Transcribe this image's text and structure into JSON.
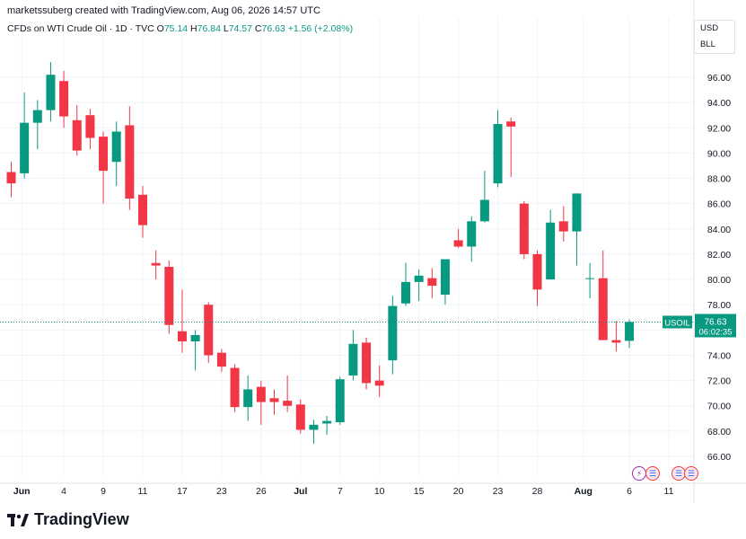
{
  "header": {
    "author_line": "marketssuberg created with TradingView.com, Aug 06, 2026 14:57 UTC"
  },
  "symbol": {
    "name": "CFDs on WTI Crude Oil · 1D · TVC",
    "o_label": "O",
    "o_value": "75.14",
    "h_label": "H",
    "h_value": "76.84",
    "l_label": "L",
    "l_value": "74.57",
    "c_label": "C",
    "c_value": "76.63",
    "change": "+1.56 (+2.08%)"
  },
  "currency": {
    "line1": "USD",
    "line2": "BLL"
  },
  "price_tag": {
    "symbol": "USOIL",
    "price": "76.63",
    "countdown": "06:02:35"
  },
  "brand": {
    "name": "TradingView"
  },
  "colors": {
    "up": "#089981",
    "down": "#f23645",
    "grid": "#f0f3fa",
    "text": "#131722",
    "last_line": "#089981"
  },
  "chart_data": {
    "type": "candlestick",
    "ylim": [
      65,
      98
    ],
    "yticks": [
      "66.00",
      "68.00",
      "70.00",
      "72.00",
      "74.00",
      "76.00",
      "78.00",
      "80.00",
      "82.00",
      "84.00",
      "86.00",
      "88.00",
      "90.00",
      "92.00",
      "94.00",
      "96.00"
    ],
    "xticks": [
      {
        "label": "Jun",
        "i": 0.8
      },
      {
        "label": "4",
        "i": 4
      },
      {
        "label": "9",
        "i": 7
      },
      {
        "label": "11",
        "i": 10
      },
      {
        "label": "17",
        "i": 13
      },
      {
        "label": "23",
        "i": 16
      },
      {
        "label": "26",
        "i": 19
      },
      {
        "label": "Jul",
        "i": 22
      },
      {
        "label": "7",
        "i": 25
      },
      {
        "label": "10",
        "i": 28
      },
      {
        "label": "15",
        "i": 31
      },
      {
        "label": "20",
        "i": 34
      },
      {
        "label": "23",
        "i": 37
      },
      {
        "label": "28",
        "i": 40
      },
      {
        "label": "Aug",
        "i": 43.5
      },
      {
        "label": "6",
        "i": 47
      },
      {
        "label": "11",
        "i": 50
      }
    ],
    "last_price": 76.63,
    "candles": [
      {
        "o": 88.5,
        "h": 89.3,
        "l": 86.5,
        "c": 87.6
      },
      {
        "o": 88.4,
        "h": 94.8,
        "l": 88.0,
        "c": 92.4
      },
      {
        "o": 92.4,
        "h": 94.2,
        "l": 90.3,
        "c": 93.4
      },
      {
        "o": 93.4,
        "h": 97.2,
        "l": 92.5,
        "c": 96.2
      },
      {
        "o": 95.7,
        "h": 96.5,
        "l": 92.0,
        "c": 92.9
      },
      {
        "o": 92.6,
        "h": 93.8,
        "l": 89.8,
        "c": 90.2
      },
      {
        "o": 93.0,
        "h": 93.5,
        "l": 90.3,
        "c": 91.2
      },
      {
        "o": 91.3,
        "h": 91.7,
        "l": 86.0,
        "c": 88.6
      },
      {
        "o": 89.3,
        "h": 92.5,
        "l": 87.4,
        "c": 91.7
      },
      {
        "o": 92.2,
        "h": 93.7,
        "l": 85.5,
        "c": 86.4
      },
      {
        "o": 86.7,
        "h": 87.4,
        "l": 83.3,
        "c": 84.3
      },
      {
        "o": 81.3,
        "h": 82.3,
        "l": 80.0,
        "c": 81.1
      },
      {
        "o": 81.0,
        "h": 81.5,
        "l": 75.7,
        "c": 76.4
      },
      {
        "o": 75.9,
        "h": 79.2,
        "l": 74.2,
        "c": 75.1
      },
      {
        "o": 75.1,
        "h": 76.0,
        "l": 72.8,
        "c": 75.6
      },
      {
        "o": 78.0,
        "h": 78.2,
        "l": 73.4,
        "c": 74.0
      },
      {
        "o": 74.2,
        "h": 74.5,
        "l": 72.7,
        "c": 73.1
      },
      {
        "o": 73.0,
        "h": 73.3,
        "l": 69.5,
        "c": 69.9
      },
      {
        "o": 69.9,
        "h": 72.4,
        "l": 68.8,
        "c": 71.3
      },
      {
        "o": 71.5,
        "h": 72.0,
        "l": 68.5,
        "c": 70.3
      },
      {
        "o": 70.6,
        "h": 71.3,
        "l": 69.3,
        "c": 70.3
      },
      {
        "o": 70.4,
        "h": 72.4,
        "l": 69.5,
        "c": 70.0
      },
      {
        "o": 70.1,
        "h": 70.5,
        "l": 67.8,
        "c": 68.1
      },
      {
        "o": 68.1,
        "h": 68.9,
        "l": 67.0,
        "c": 68.5
      },
      {
        "o": 68.6,
        "h": 69.2,
        "l": 67.7,
        "c": 68.8
      },
      {
        "o": 68.7,
        "h": 72.3,
        "l": 68.5,
        "c": 72.1
      },
      {
        "o": 72.4,
        "h": 76.0,
        "l": 72.0,
        "c": 74.9
      },
      {
        "o": 75.0,
        "h": 75.4,
        "l": 71.3,
        "c": 71.8
      },
      {
        "o": 72.0,
        "h": 73.2,
        "l": 70.7,
        "c": 71.6
      },
      {
        "o": 73.6,
        "h": 78.7,
        "l": 72.5,
        "c": 77.9
      },
      {
        "o": 78.1,
        "h": 81.3,
        "l": 77.9,
        "c": 79.8
      },
      {
        "o": 79.8,
        "h": 80.8,
        "l": 78.3,
        "c": 80.3
      },
      {
        "o": 80.1,
        "h": 80.9,
        "l": 78.5,
        "c": 79.5
      },
      {
        "o": 78.8,
        "h": 81.6,
        "l": 78.0,
        "c": 81.6
      },
      {
        "o": 83.1,
        "h": 84.0,
        "l": 82.5,
        "c": 82.6
      },
      {
        "o": 82.6,
        "h": 85.0,
        "l": 81.4,
        "c": 84.6
      },
      {
        "o": 84.6,
        "h": 88.6,
        "l": 84.5,
        "c": 86.3
      },
      {
        "o": 87.6,
        "h": 93.4,
        "l": 87.3,
        "c": 92.3
      },
      {
        "o": 92.5,
        "h": 92.8,
        "l": 88.1,
        "c": 92.1
      },
      {
        "o": 86.0,
        "h": 86.2,
        "l": 81.6,
        "c": 82.0
      },
      {
        "o": 82.0,
        "h": 82.3,
        "l": 77.9,
        "c": 79.2
      },
      {
        "o": 80.0,
        "h": 85.5,
        "l": 80.0,
        "c": 84.5
      },
      {
        "o": 84.6,
        "h": 85.8,
        "l": 83.0,
        "c": 83.8
      },
      {
        "o": 83.8,
        "h": 86.8,
        "l": 81.1,
        "c": 86.8
      },
      {
        "o": 80.1,
        "h": 81.3,
        "l": 78.5,
        "c": 80.1
      },
      {
        "o": 80.1,
        "h": 82.3,
        "l": 75.2,
        "c": 75.2
      },
      {
        "o": 75.2,
        "h": 76.7,
        "l": 74.3,
        "c": 75.0
      },
      {
        "o": 75.14,
        "h": 76.84,
        "l": 74.57,
        "c": 76.63
      }
    ]
  }
}
